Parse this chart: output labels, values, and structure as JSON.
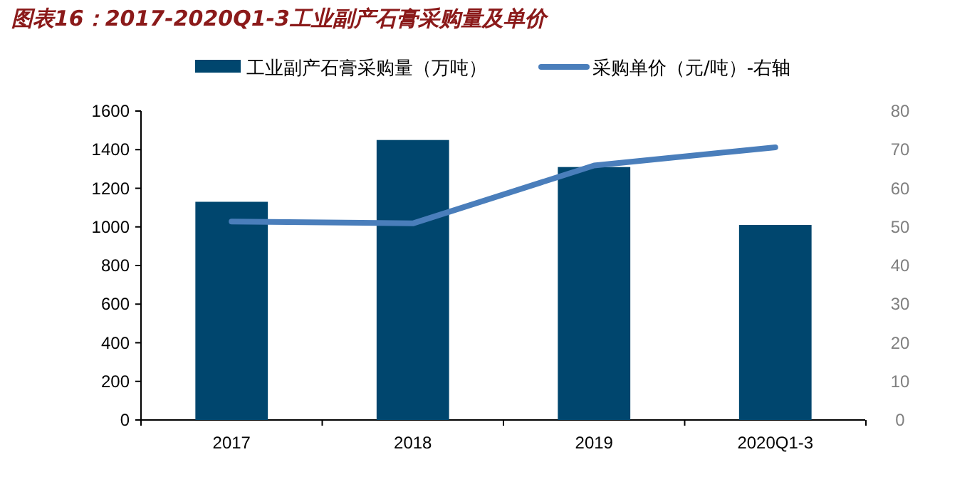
{
  "chart_data": {
    "type": "bar",
    "title": "图表16：2017-2020Q1-3工业副产石膏采购量及单价",
    "categories": [
      "2017",
      "2018",
      "2019",
      "2020Q1-3"
    ],
    "series": [
      {
        "name": "工业副产石膏采购量（万吨）",
        "color": "#00466e",
        "values": [
          1130,
          1450,
          1310,
          1010
        ]
      },
      {
        "name": "采购单价（元/吨）-右轴",
        "type": "line",
        "axis": "y2",
        "color": "#4a7ebb",
        "values": [
          51.4,
          50.9,
          65.9,
          70.6
        ]
      }
    ],
    "ylim": [
      0,
      1600
    ],
    "yticks": [
      0,
      200,
      400,
      600,
      800,
      1000,
      1200,
      1400,
      1600
    ],
    "y2lim": [
      0,
      80
    ],
    "y2ticks": [
      0,
      10,
      20,
      30,
      40,
      50,
      60,
      70,
      80
    ],
    "legend": "top",
    "grid": false
  }
}
